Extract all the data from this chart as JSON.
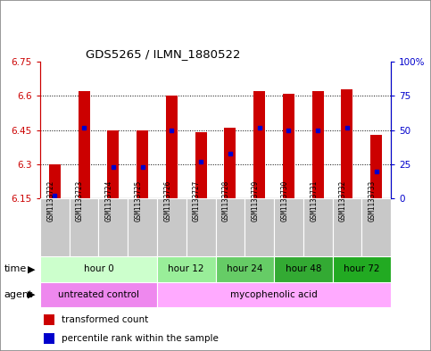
{
  "title": "GDS5265 / ILMN_1880522",
  "samples": [
    "GSM1133722",
    "GSM1133723",
    "GSM1133724",
    "GSM1133725",
    "GSM1133726",
    "GSM1133727",
    "GSM1133728",
    "GSM1133729",
    "GSM1133730",
    "GSM1133731",
    "GSM1133732",
    "GSM1133733"
  ],
  "bar_bottom": 6.15,
  "transformed_counts": [
    6.3,
    6.62,
    6.45,
    6.45,
    6.6,
    6.44,
    6.46,
    6.62,
    6.61,
    6.62,
    6.63,
    6.43
  ],
  "percentile_ranks": [
    2,
    52,
    23,
    23,
    50,
    27,
    33,
    52,
    50,
    50,
    52,
    20
  ],
  "ylim": [
    6.15,
    6.75
  ],
  "y_ticks": [
    6.15,
    6.3,
    6.45,
    6.6,
    6.75
  ],
  "y_right_ticks": [
    0,
    25,
    50,
    75,
    100
  ],
  "bar_color": "#cc0000",
  "percentile_color": "#0000cc",
  "time_group_data": [
    {
      "samples": [
        0,
        1,
        2,
        3
      ],
      "label": "hour 0",
      "color": "#ccffcc"
    },
    {
      "samples": [
        4,
        5
      ],
      "label": "hour 12",
      "color": "#99ee99"
    },
    {
      "samples": [
        6,
        7
      ],
      "label": "hour 24",
      "color": "#66cc66"
    },
    {
      "samples": [
        8,
        9
      ],
      "label": "hour 48",
      "color": "#33aa33"
    },
    {
      "samples": [
        10,
        11
      ],
      "label": "hour 72",
      "color": "#22aa22"
    }
  ],
  "agent_group_data": [
    {
      "samples": [
        0,
        1,
        2,
        3
      ],
      "label": "untreated control",
      "color": "#ee88ee"
    },
    {
      "samples": [
        4,
        5,
        6,
        7,
        8,
        9,
        10,
        11
      ],
      "label": "mycophenolic acid",
      "color": "#ffaaff"
    }
  ],
  "gsm_box_color": "#c8c8c8",
  "background_color": "#ffffff",
  "left_axis_color": "#cc0000",
  "right_axis_color": "#0000cc",
  "border_color": "#888888"
}
